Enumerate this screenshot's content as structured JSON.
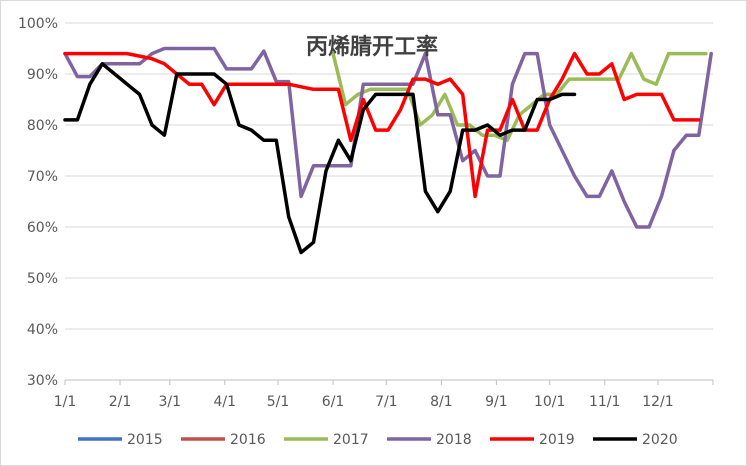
{
  "chart_data": {
    "type": "line",
    "title": "丙烯腈开工率",
    "xlabel": "",
    "ylabel": "",
    "x_ticks": [
      "1/1",
      "2/1",
      "3/1",
      "4/1",
      "5/1",
      "6/1",
      "7/1",
      "8/1",
      "9/1",
      "10/1",
      "11/1",
      "12/1"
    ],
    "y_ticks": [
      "30%",
      "40%",
      "50%",
      "60%",
      "70%",
      "80%",
      "90%",
      "100%"
    ],
    "ylim": [
      30,
      100
    ],
    "y_unit": "%",
    "grid": "horizontal",
    "legend_position": "bottom",
    "series": [
      {
        "name": "2015",
        "color": "#4472c4",
        "x": [],
        "y": []
      },
      {
        "name": "2016",
        "color": "#c0504d",
        "x": [],
        "y": []
      },
      {
        "name": "2017",
        "color": "#9bbb59",
        "x": [
          "06-01",
          "06-08",
          "06-15",
          "06-22",
          "06-29",
          "07-06",
          "07-13",
          "07-20",
          "07-27",
          "08-03",
          "08-10",
          "08-17",
          "08-24",
          "08-31",
          "09-07",
          "09-14",
          "09-21",
          "09-28",
          "10-05",
          "10-12",
          "10-19",
          "10-26",
          "11-02",
          "11-09",
          "11-16",
          "11-23",
          "11-30",
          "12-07",
          "12-14",
          "12-21",
          "12-28"
        ],
        "y": [
          94,
          84,
          86,
          87,
          87,
          87,
          87,
          80,
          82,
          86,
          80,
          80,
          78,
          78,
          77,
          82,
          84,
          86,
          86,
          89,
          89,
          89,
          89,
          89,
          94,
          89,
          88,
          94,
          94,
          94,
          94
        ]
      },
      {
        "name": "2018",
        "color": "#8064a2",
        "x": [
          "01-01",
          "01-08",
          "01-15",
          "01-22",
          "01-29",
          "02-05",
          "02-12",
          "02-19",
          "02-26",
          "03-05",
          "03-12",
          "03-19",
          "03-26",
          "04-02",
          "04-09",
          "04-16",
          "04-23",
          "04-30",
          "05-07",
          "05-14",
          "05-21",
          "05-28",
          "06-04",
          "06-11",
          "06-18",
          "06-25",
          "07-02",
          "07-09",
          "07-16",
          "07-23",
          "07-30",
          "08-06",
          "08-13",
          "08-20",
          "08-27",
          "09-03",
          "09-10",
          "09-17",
          "09-24",
          "10-01",
          "10-08",
          "10-15",
          "10-22",
          "10-29",
          "11-05",
          "11-12",
          "11-19",
          "11-26",
          "12-03",
          "12-10",
          "12-17",
          "12-24",
          "12-31"
        ],
        "y": [
          94,
          89.5,
          89.5,
          92,
          92,
          92,
          92,
          94,
          95,
          95,
          95,
          95,
          95,
          91,
          91,
          91,
          94.5,
          88.5,
          88.5,
          66,
          72,
          72,
          72,
          72,
          88,
          88,
          88,
          88,
          88,
          94,
          82,
          82,
          73,
          75,
          70,
          70,
          88,
          94,
          94,
          80,
          75,
          70,
          66,
          66,
          71,
          65,
          60,
          60,
          66,
          75,
          78,
          78,
          94
        ]
      },
      {
        "name": "2019",
        "color": "#ff0000",
        "x": [
          "01-01",
          "01-08",
          "01-15",
          "01-22",
          "01-29",
          "02-05",
          "02-12",
          "02-19",
          "02-26",
          "03-05",
          "03-12",
          "03-19",
          "03-26",
          "04-02",
          "04-09",
          "04-16",
          "04-23",
          "04-30",
          "05-07",
          "05-14",
          "05-21",
          "05-28",
          "06-04",
          "06-11",
          "06-18",
          "06-25",
          "07-02",
          "07-09",
          "07-16",
          "07-23",
          "07-30",
          "08-06",
          "08-13",
          "08-20",
          "08-27",
          "09-03",
          "09-10",
          "09-17",
          "09-24",
          "10-01",
          "10-08",
          "10-15",
          "10-22",
          "10-29",
          "11-05",
          "11-12",
          "11-19",
          "11-26",
          "12-03",
          "12-10",
          "12-17",
          "12-24"
        ],
        "y": [
          94,
          94,
          94,
          94,
          94,
          94,
          93.5,
          93,
          92,
          90,
          88,
          88,
          84,
          88,
          88,
          88,
          88,
          88,
          88,
          87.5,
          87,
          87,
          87,
          77,
          85,
          79,
          79,
          83,
          89,
          89,
          88,
          89,
          86,
          66,
          79,
          79,
          85,
          79,
          79,
          85,
          89,
          94,
          90,
          90,
          92,
          85,
          86,
          86,
          86,
          81,
          81,
          81
        ]
      },
      {
        "name": "2020",
        "color": "#000000",
        "x": [
          "01-01",
          "01-08",
          "01-15",
          "01-22",
          "01-29",
          "02-05",
          "02-12",
          "02-19",
          "02-26",
          "03-05",
          "03-12",
          "03-19",
          "03-26",
          "04-02",
          "04-09",
          "04-16",
          "04-23",
          "04-30",
          "05-07",
          "05-14",
          "05-21",
          "05-28",
          "06-04",
          "06-11",
          "06-18",
          "06-25",
          "07-02",
          "07-09",
          "07-16",
          "07-23",
          "07-30",
          "08-06",
          "08-13",
          "08-20",
          "08-27",
          "09-03",
          "09-10",
          "09-17",
          "09-24",
          "10-01",
          "10-08",
          "10-15"
        ],
        "y": [
          81,
          81,
          88,
          92,
          90,
          88,
          86,
          80,
          78,
          90,
          90,
          90,
          90,
          88,
          80,
          79,
          77,
          77,
          62,
          55,
          57,
          71,
          77,
          73,
          83,
          86,
          86,
          86,
          86,
          67,
          63,
          67,
          79,
          79,
          80,
          78,
          79,
          79,
          85,
          85,
          86,
          86
        ]
      }
    ]
  }
}
